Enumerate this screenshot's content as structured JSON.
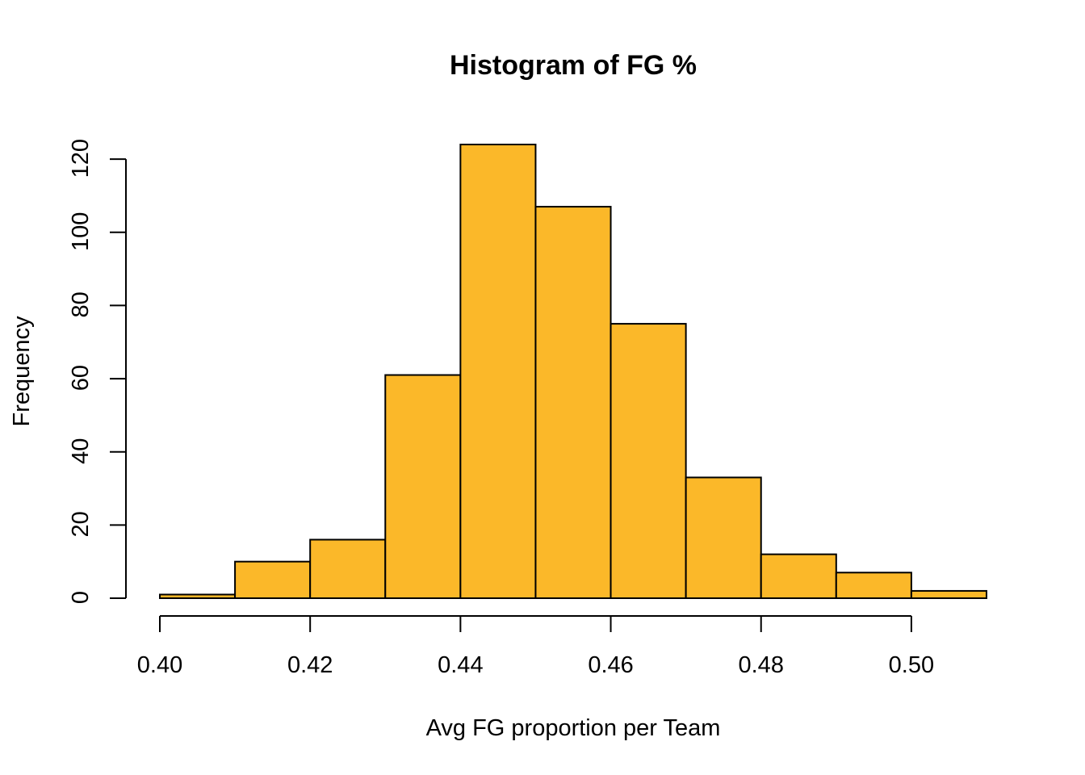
{
  "chart_data": {
    "type": "bar",
    "subtype": "histogram",
    "title": "Histogram of FG %",
    "xlabel": "Avg FG proportion per Team",
    "ylabel": "Frequency",
    "bins": [
      {
        "start": 0.4,
        "end": 0.41,
        "count": 1
      },
      {
        "start": 0.41,
        "end": 0.42,
        "count": 10
      },
      {
        "start": 0.42,
        "end": 0.43,
        "count": 16
      },
      {
        "start": 0.43,
        "end": 0.44,
        "count": 61
      },
      {
        "start": 0.44,
        "end": 0.45,
        "count": 124
      },
      {
        "start": 0.45,
        "end": 0.46,
        "count": 107
      },
      {
        "start": 0.46,
        "end": 0.47,
        "count": 75
      },
      {
        "start": 0.47,
        "end": 0.48,
        "count": 33
      },
      {
        "start": 0.48,
        "end": 0.49,
        "count": 12
      },
      {
        "start": 0.49,
        "end": 0.5,
        "count": 7
      },
      {
        "start": 0.5,
        "end": 0.51,
        "count": 2
      }
    ],
    "xlim": [
      0.4,
      0.51
    ],
    "ylim": [
      0,
      124
    ],
    "x_ticks": [
      0.4,
      0.42,
      0.44,
      0.46,
      0.48,
      0.5
    ],
    "x_tick_labels": [
      "0.40",
      "0.42",
      "0.44",
      "0.46",
      "0.48",
      "0.50"
    ],
    "y_ticks": [
      0,
      20,
      40,
      60,
      80,
      100,
      120
    ],
    "y_tick_labels": [
      "0",
      "20",
      "40",
      "60",
      "80",
      "100",
      "120"
    ],
    "bar_color": "#FBB829",
    "border_color": "#000000",
    "grid": false,
    "legend": "none"
  }
}
